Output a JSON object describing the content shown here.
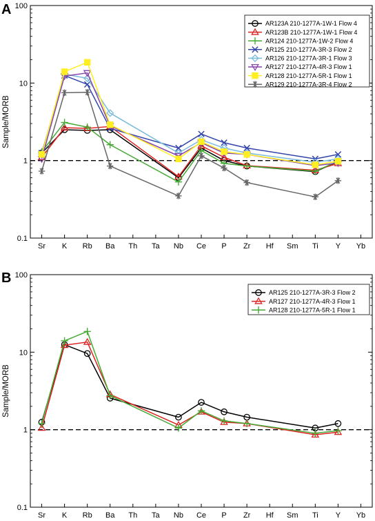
{
  "chart_data": [
    {
      "panel_label": "A",
      "type": "line",
      "ylabel": "Sample/MORB",
      "yscale": "log",
      "ylim": [
        0.1,
        100
      ],
      "yticks": [
        "0.1",
        "1",
        "10",
        "100"
      ],
      "categories": [
        "Sr",
        "K",
        "Rb",
        "Ba",
        "Th",
        "Ta",
        "Nb",
        "Ce",
        "P",
        "Zr",
        "Hf",
        "Sm",
        "Ti",
        "Y",
        "Yb"
      ],
      "reference_line": 1,
      "legend_position": "top-right",
      "series": [
        {
          "name": "AR123A   210-1277A-1W-1 Flow 4",
          "color": "#000000",
          "marker": "circle",
          "values": [
            1.25,
            2.5,
            2.45,
            2.5,
            null,
            null,
            0.6,
            1.45,
            1.0,
            0.85,
            null,
            null,
            0.72,
            0.97,
            null
          ]
        },
        {
          "name": "AR123B   210-1277A-1W-1 Flow 4",
          "color": "#dd2222",
          "marker": "triangle-up",
          "values": [
            1.1,
            2.65,
            2.6,
            2.75,
            null,
            null,
            0.62,
            1.55,
            1.1,
            0.86,
            null,
            null,
            0.75,
            0.92,
            null
          ]
        },
        {
          "name": "AR124   210-1277A-1W-2 Flow 4",
          "color": "#44aa33",
          "marker": "plus",
          "values": [
            1.3,
            3.1,
            2.7,
            1.6,
            null,
            null,
            0.53,
            1.35,
            0.92,
            0.85,
            null,
            null,
            0.73,
            0.98,
            null
          ]
        },
        {
          "name": "AR125   210-1277A-3R-3 Flow 2",
          "color": "#3344aa",
          "marker": "cross",
          "values": [
            1.25,
            12.5,
            9.6,
            2.6,
            null,
            null,
            1.45,
            2.2,
            1.7,
            1.45,
            null,
            null,
            1.05,
            1.2,
            null
          ]
        },
        {
          "name": "AR126   210-1277A-3R-1 Flow 3",
          "color": "#77bbdd",
          "marker": "diamond",
          "values": [
            1.2,
            13.0,
            11.5,
            4.1,
            null,
            null,
            1.25,
            1.85,
            1.45,
            1.25,
            null,
            null,
            0.95,
            1.05,
            null
          ]
        },
        {
          "name": "AR127   210-1277A-4R-3 Flow 1",
          "color": "#8844aa",
          "marker": "triangle-down",
          "values": [
            1.05,
            12.3,
            13.5,
            2.8,
            null,
            null,
            1.15,
            1.7,
            1.25,
            1.2,
            null,
            null,
            0.86,
            0.93,
            null
          ]
        },
        {
          "name": "AR128   210-1277A-5R-1 Flow 1",
          "color": "#ffee22",
          "marker": "square",
          "values": [
            1.2,
            14.0,
            18.5,
            2.9,
            null,
            null,
            1.05,
            1.75,
            1.3,
            1.2,
            null,
            null,
            0.88,
            0.98,
            null
          ]
        },
        {
          "name": "AR129   210-1277A-3R-4 Flow 2",
          "color": "#666666",
          "marker": "asterisk",
          "values": [
            0.73,
            7.5,
            7.6,
            0.85,
            null,
            null,
            0.35,
            1.15,
            0.8,
            0.52,
            null,
            null,
            0.34,
            0.55,
            null
          ]
        }
      ]
    },
    {
      "panel_label": "B",
      "type": "line",
      "ylabel": "Sample/MORB",
      "yscale": "log",
      "ylim": [
        0.1,
        100
      ],
      "yticks": [
        "0.1",
        "1",
        "10",
        "100"
      ],
      "categories": [
        "Sr",
        "K",
        "Rb",
        "Ba",
        "Th",
        "Ta",
        "Nb",
        "Ce",
        "P",
        "Zr",
        "Hf",
        "Sm",
        "Ti",
        "Y",
        "Yb"
      ],
      "reference_line": 1,
      "legend_position": "top-right",
      "series": [
        {
          "name": "AR125   210-1277A-3R-3 Flow 2",
          "color": "#000000",
          "marker": "circle",
          "values": [
            1.25,
            12.5,
            9.6,
            2.55,
            null,
            null,
            1.45,
            2.25,
            1.7,
            1.45,
            null,
            null,
            1.05,
            1.2,
            null
          ]
        },
        {
          "name": "AR127   210-1277A-4R-3 Flow 1",
          "color": "#dd2222",
          "marker": "triangle-up",
          "values": [
            1.05,
            12.3,
            13.5,
            2.85,
            null,
            null,
            1.15,
            1.7,
            1.25,
            1.2,
            null,
            null,
            0.86,
            0.93,
            null
          ]
        },
        {
          "name": "AR128   210-1277A-5R-1 Flow 1",
          "color": "#44aa33",
          "marker": "plus",
          "values": [
            1.2,
            14.0,
            18.5,
            2.75,
            null,
            null,
            1.05,
            1.75,
            1.3,
            1.2,
            null,
            null,
            0.9,
            0.97,
            null
          ]
        }
      ]
    }
  ]
}
